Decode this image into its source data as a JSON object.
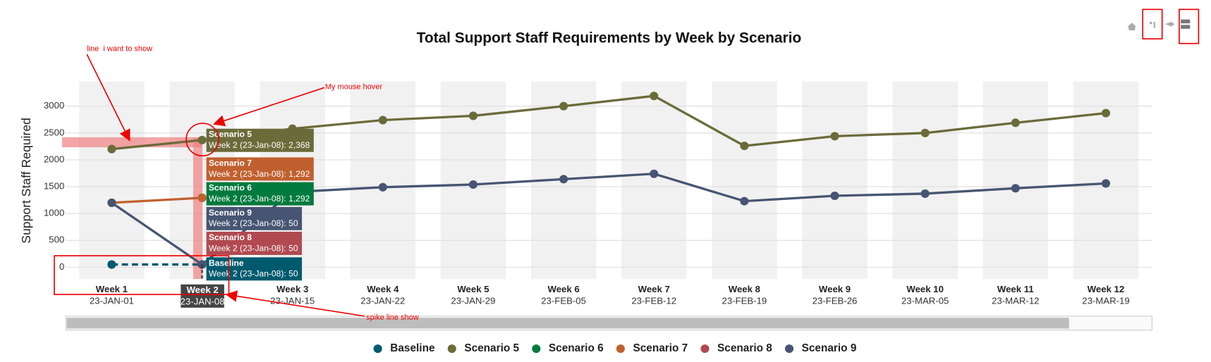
{
  "chart_data": {
    "type": "line",
    "title": "Total Support Staff Requirements by Week by Scenario",
    "y_label": "Support Staff Required",
    "categories": [
      "Week 1",
      "Week 2",
      "Week 3",
      "Week 4",
      "Week 5",
      "Week 6",
      "Week 7",
      "Week 8",
      "Week 9",
      "Week 10",
      "Week 11",
      "Week 12"
    ],
    "dates": [
      "23-JAN-01",
      "23-JAN-08",
      "23-JAN-15",
      "23-JAN-22",
      "23-JAN-29",
      "23-FEB-05",
      "23-FEB-12",
      "23-FEB-19",
      "23-FEB-26",
      "23-MAR-05",
      "23-MAR-12",
      "23-MAR-19"
    ],
    "ylim": [
      -220,
      3460
    ],
    "yticks": [
      0,
      500,
      1000,
      1500,
      2000,
      2500,
      3000
    ],
    "grid": true,
    "series": [
      {
        "name": "Baseline",
        "color": "#005a6e",
        "dash": "dash",
        "values": [
          50,
          50,
          null,
          null,
          null,
          null,
          null,
          null,
          null,
          null,
          null,
          null
        ]
      },
      {
        "name": "Scenario 5",
        "color": "#6b6b3a",
        "values": [
          2200,
          2368,
          2580,
          2740,
          2820,
          3000,
          3190,
          2260,
          2440,
          2500,
          2690,
          2870
        ]
      },
      {
        "name": "Scenario 6",
        "color": "#007a3d",
        "values": [
          null,
          1292,
          null,
          null,
          null,
          null,
          null,
          null,
          null,
          null,
          null,
          null
        ]
      },
      {
        "name": "Scenario 7",
        "color": "#c0602f",
        "values": [
          1200,
          1292,
          null,
          null,
          null,
          null,
          null,
          null,
          null,
          null,
          null,
          null
        ]
      },
      {
        "name": "Scenario 8",
        "color": "#b04a50",
        "values": [
          null,
          50,
          null,
          null,
          null,
          null,
          null,
          null,
          null,
          null,
          null,
          null
        ]
      },
      {
        "name": "Scenario 9",
        "color": "#475573",
        "values": [
          1200,
          50,
          1400,
          1490,
          1540,
          1640,
          1740,
          1230,
          1330,
          1370,
          1470,
          1560
        ]
      }
    ],
    "hover": [
      {
        "name": "Scenario 5",
        "text": "Week 2 (23-Jan-08): 2,368",
        "color": "#6b6b3a"
      },
      {
        "name": "Scenario 7",
        "text": "Week 2 (23-Jan-08): 1,292",
        "color": "#c0602f"
      },
      {
        "name": "Scenario 6",
        "text": "Week 2 (23-Jan-08): 1,292",
        "color": "#007a3d"
      },
      {
        "name": "Scenario 9",
        "text": "Week 2 (23-Jan-08): 50",
        "color": "#475573"
      },
      {
        "name": "Scenario 8",
        "text": "Week 2 (23-Jan-08): 50",
        "color": "#b04a50"
      },
      {
        "name": "Baseline",
        "text": "Week 2 (23-Jan-08): 50",
        "color": "#005a6e"
      }
    ],
    "annotations": [
      "line  i want to show",
      "My mouse hover",
      "spike line show"
    ]
  }
}
